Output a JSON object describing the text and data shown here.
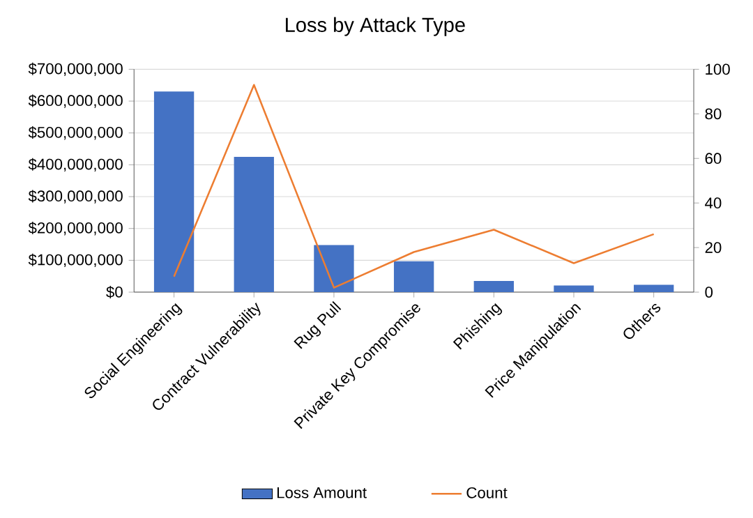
{
  "chart_data": {
    "type": "bar",
    "title": "Loss by Attack Type",
    "categories": [
      "Social Engineering",
      "Contract Vulnerability",
      "Rug Pull",
      "Private Key Compromise",
      "Phishing",
      "Price Manipulation",
      "Others"
    ],
    "series": [
      {
        "name": "Loss Amount",
        "color": "#4472c4",
        "values": [
          630000000,
          425000000,
          148000000,
          97000000,
          35000000,
          21000000,
          23000000
        ]
      },
      {
        "name": "Count",
        "type": "line",
        "axis": "y2",
        "color": "#ed7d31",
        "values": [
          7,
          93,
          2,
          18,
          28,
          13,
          26
        ]
      }
    ],
    "ylim": [
      0,
      700000000
    ],
    "yticks": [
      {
        "value": 0,
        "label": "$0"
      },
      {
        "value": 100000000,
        "label": "$100,000,000"
      },
      {
        "value": 200000000,
        "label": "$200,000,000"
      },
      {
        "value": 300000000,
        "label": "$300,000,000"
      },
      {
        "value": 400000000,
        "label": "$400,000,000"
      },
      {
        "value": 500000000,
        "label": "$500,000,000"
      },
      {
        "value": 600000000,
        "label": "$600,000,000"
      },
      {
        "value": 700000000,
        "label": "$700,000,000"
      }
    ],
    "y2lim": [
      0,
      100
    ],
    "y2ticks": [
      0,
      20,
      40,
      60,
      80,
      100
    ],
    "grid": "y",
    "legend": "bottom"
  }
}
